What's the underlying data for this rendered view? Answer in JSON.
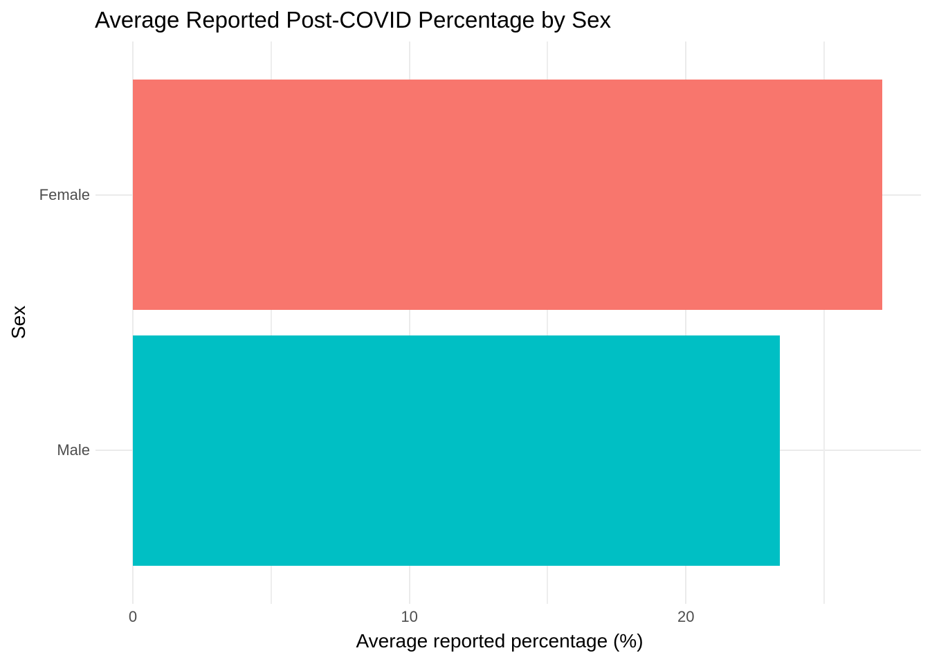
{
  "chart_data": {
    "type": "bar",
    "orientation": "horizontal",
    "title": "Average Reported Post-COVID Percentage by Sex",
    "categories": [
      "Female",
      "Male"
    ],
    "values": [
      27.1,
      23.4
    ],
    "bar_colors": [
      "#F8766D",
      "#00BFC4"
    ],
    "xlabel": "Average reported percentage (%)",
    "ylabel": "Sex",
    "x_ticks": [
      0,
      10,
      20
    ],
    "x_minor_ticks": [
      5,
      15,
      25
    ],
    "xlim": [
      -1.35,
      28.5
    ],
    "grid": true,
    "legend_position": "none",
    "colors": {
      "gridline_major": "#EBEBEB",
      "gridline_minor": "#EDEDED",
      "tick_label_text": "#4D4D4D",
      "axis_title_text": "#000000",
      "title_text": "#000000",
      "background": "#FFFFFF"
    }
  }
}
